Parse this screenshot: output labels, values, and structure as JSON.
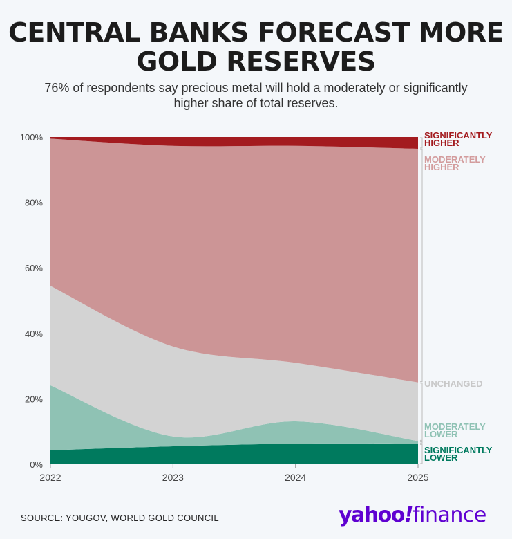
{
  "title": "CENTRAL BANKS FORECAST MORE GOLD RESERVES",
  "subtitle": "76% of respondents say precious metal will hold a moderately or significantly higher share of total reserves.",
  "source": "SOURCE: YOUGOV, WORLD GOLD COUNCIL",
  "logo": "yahoo!finance",
  "chart_data": {
    "type": "area",
    "stacked": true,
    "x": [
      "2022",
      "2023",
      "2024",
      "2025"
    ],
    "ylim": [
      0,
      100
    ],
    "yticks": [
      "0%",
      "20%",
      "40%",
      "60%",
      "80%",
      "100%"
    ],
    "grid": false,
    "legend": "right-inline-labels",
    "series": [
      {
        "name": "SIGNIFICANTLY LOWER",
        "color": "#007a5e",
        "values": [
          4.3,
          5.5,
          6.3,
          6.3
        ]
      },
      {
        "name": "MODERATELY LOWER",
        "color": "#8fc2b4",
        "values": [
          19.8,
          3.0,
          6.8,
          0.8
        ]
      },
      {
        "name": "UNCHANGED",
        "color": "#d3d3d3",
        "values": [
          30.4,
          27.5,
          17.9,
          17.9
        ]
      },
      {
        "name": "MODERATELY HIGHER",
        "color": "#cc9596",
        "values": [
          45.0,
          61.3,
          66.3,
          71.4
        ]
      },
      {
        "name": "SIGNIFICANTLY HIGHER",
        "color": "#a31b1f",
        "values": [
          0.5,
          2.7,
          2.7,
          3.6
        ]
      }
    ],
    "label_colors": [
      "#007a5e",
      "#8fc2b4",
      "#c8c8c8",
      "#d39c9d",
      "#a31b1f"
    ]
  }
}
